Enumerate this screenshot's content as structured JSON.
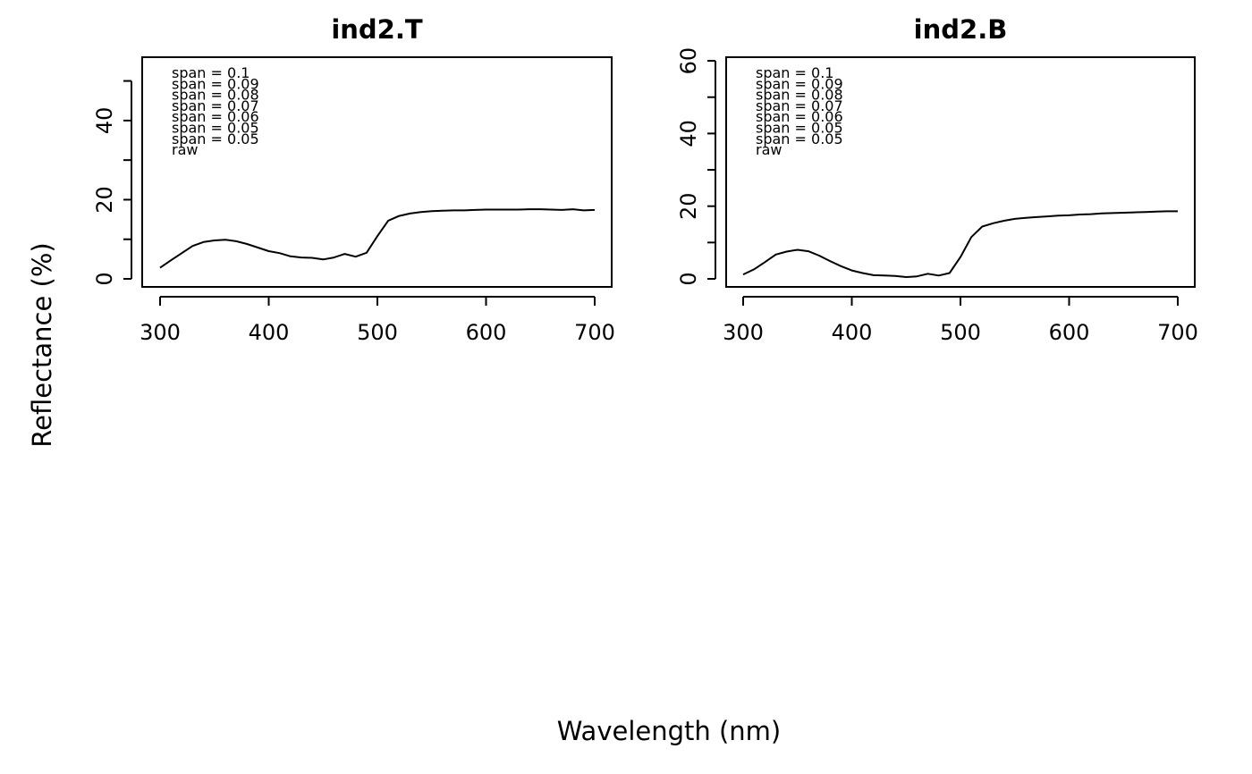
{
  "chart_data": {
    "type": "line",
    "xlabel": "Wavelength (nm)",
    "ylabel": "Reflectance (%)",
    "panels": [
      {
        "title": "ind2.T",
        "xlim": [
          300,
          700
        ],
        "ylim": [
          0,
          56
        ],
        "x_ticks": [
          300,
          400,
          500,
          600,
          700
        ],
        "y_ticks": [
          0,
          10,
          20,
          30,
          40,
          50
        ],
        "y_tick_labels": [
          "0",
          "",
          "20",
          "",
          "40",
          ""
        ],
        "legend_position": "top-left",
        "legend": [
          "span = 0.1",
          "span = 0.09",
          "span = 0.08",
          "span = 0.07",
          "span = 0.06",
          "span = 0.05",
          "span = 0.05",
          "raw"
        ],
        "series": [
          {
            "x": [
              300,
              310,
              320,
              330,
              340,
              350,
              360,
              370,
              380,
              390,
              400,
              410,
              420,
              430,
              440,
              450,
              460,
              470,
              480,
              490,
              500,
              510,
              520,
              530,
              540,
              550,
              560,
              570,
              580,
              590,
              600,
              610,
              620,
              630,
              640,
              650,
              660,
              670,
              680,
              690,
              700
            ],
            "y": [
              2.8,
              4.7,
              6.5,
              8.3,
              9.3,
              9.7,
              9.9,
              9.5,
              8.8,
              7.9,
              7.0,
              6.5,
              5.7,
              5.4,
              5.3,
              4.9,
              5.4,
              6.3,
              5.6,
              6.6,
              10.8,
              14.7,
              15.9,
              16.5,
              16.9,
              17.1,
              17.2,
              17.3,
              17.3,
              17.4,
              17.5,
              17.5,
              17.5,
              17.5,
              17.6,
              17.6,
              17.5,
              17.4,
              17.6,
              17.3,
              17.4
            ]
          }
        ]
      },
      {
        "title": "ind2.B",
        "xlim": [
          300,
          700
        ],
        "ylim": [
          -2,
          61
        ],
        "x_ticks": [
          300,
          400,
          500,
          600,
          700
        ],
        "y_ticks": [
          0,
          10,
          20,
          30,
          40,
          50,
          60
        ],
        "y_tick_labels": [
          "0",
          "",
          "20",
          "",
          "40",
          "",
          "60"
        ],
        "legend_position": "top-left",
        "legend": [
          "span = 0.1",
          "span = 0.09",
          "span = 0.08",
          "span = 0.07",
          "span = 0.06",
          "span = 0.05",
          "span = 0.05",
          "raw"
        ],
        "series": [
          {
            "x": [
              300,
              310,
              320,
              330,
              340,
              350,
              360,
              370,
              380,
              390,
              400,
              410,
              420,
              430,
              440,
              450,
              460,
              470,
              480,
              490,
              500,
              510,
              520,
              530,
              540,
              550,
              560,
              570,
              580,
              590,
              600,
              610,
              620,
              630,
              640,
              650,
              660,
              670,
              680,
              690,
              700
            ],
            "y": [
              1.2,
              2.6,
              4.6,
              6.7,
              7.5,
              8.0,
              7.6,
              6.4,
              4.9,
              3.5,
              2.3,
              1.6,
              1.0,
              0.9,
              0.8,
              0.5,
              0.7,
              1.4,
              0.9,
              1.6,
              6.0,
              11.5,
              14.4,
              15.3,
              16.0,
              16.5,
              16.8,
              17.0,
              17.2,
              17.4,
              17.5,
              17.7,
              17.8,
              18.0,
              18.1,
              18.2,
              18.3,
              18.4,
              18.5,
              18.6,
              18.6
            ]
          }
        ]
      }
    ]
  }
}
